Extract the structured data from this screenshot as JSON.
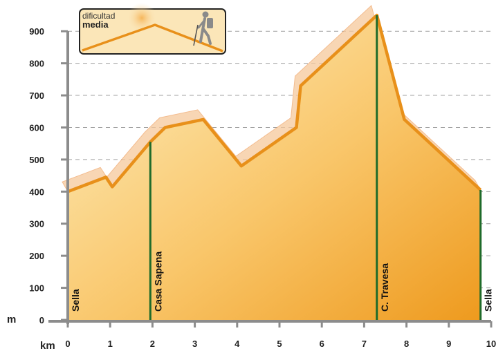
{
  "chart_data": {
    "type": "area",
    "title": "",
    "xlabel": "km",
    "ylabel": "m",
    "xlim": [
      0,
      10
    ],
    "ylim": [
      0,
      950
    ],
    "grid": true,
    "x_ticks": [
      0,
      1,
      2,
      3,
      4,
      5,
      6,
      7,
      8,
      9,
      10
    ],
    "y_ticks": [
      0,
      100,
      200,
      300,
      400,
      500,
      600,
      700,
      800,
      900
    ],
    "series": [
      {
        "x": [
          0,
          0.9,
          1.05,
          1.95,
          2.3,
          3.2,
          4.1,
          5.4,
          5.5,
          7.3,
          7.95,
          9.75
        ],
        "y": [
          400,
          445,
          415,
          555,
          600,
          625,
          480,
          600,
          730,
          950,
          625,
          405
        ]
      }
    ],
    "waypoints": [
      {
        "label": "Sella",
        "x": 0,
        "y": 400
      },
      {
        "label": "Casa Sapena",
        "x": 1.95,
        "y": 555
      },
      {
        "label": "C. Travesa",
        "x": 7.3,
        "y": 950
      },
      {
        "label": "Sella",
        "x": 9.75,
        "y": 405
      }
    ],
    "colors": {
      "line": "#e8901a",
      "fill_light": "#fde9b0",
      "fill_dark": "#ee9a1e",
      "marker": "#1f6b2a",
      "grid": "#9a9a9a"
    }
  },
  "badge": {
    "line1": "dificultad",
    "line2": "media",
    "icon": "hiker-icon"
  }
}
